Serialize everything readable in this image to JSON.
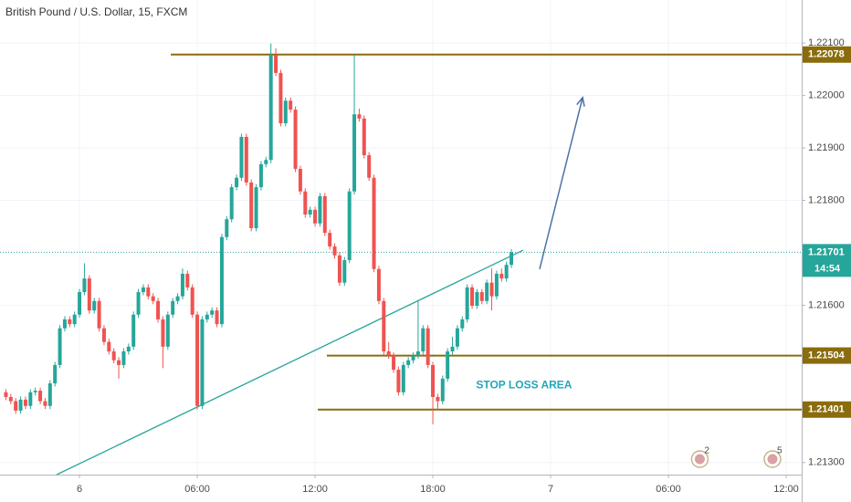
{
  "chart_data": {
    "type": "candlestick",
    "title": "British Pound / U.S. Dollar, 15, FXCM",
    "up_color": "#26a69a",
    "down_color": "#ef5350",
    "xlim": [
      -4.05,
      36.79
    ],
    "ylim": [
      1.21277,
      1.22182
    ],
    "xticks": [
      {
        "value": 0,
        "label": "6"
      },
      {
        "value": 6,
        "label": "06:00"
      },
      {
        "value": 12,
        "label": "12:00"
      },
      {
        "value": 18,
        "label": "18:00"
      },
      {
        "value": 24,
        "label": "7"
      },
      {
        "value": 30,
        "label": "06:00"
      },
      {
        "value": 36,
        "label": "12:00"
      }
    ],
    "yticks": [
      {
        "value": 1.221,
        "label": "1.22100"
      },
      {
        "value": 1.22,
        "label": "1.22000"
      },
      {
        "value": 1.219,
        "label": "1.21900"
      },
      {
        "value": 1.218,
        "label": "1.21800"
      },
      {
        "value": 1.216,
        "label": "1.21600"
      },
      {
        "value": 1.213,
        "label": "1.21300"
      }
    ],
    "grid": true,
    "x": [
      -3.75,
      -3.5,
      -3.25,
      -3,
      -2.75,
      -2.5,
      -2.25,
      -2,
      -1.75,
      -1.5,
      -1.25,
      -1,
      -0.75,
      -0.5,
      -0.25,
      0,
      0.25,
      0.5,
      0.75,
      1,
      1.25,
      1.5,
      1.75,
      2,
      2.25,
      2.5,
      2.75,
      3,
      3.25,
      3.5,
      3.75,
      4,
      4.25,
      4.5,
      4.75,
      5,
      5.25,
      5.5,
      5.75,
      6,
      6.25,
      6.5,
      6.75,
      7,
      7.25,
      7.5,
      7.75,
      8,
      8.25,
      8.5,
      8.75,
      9,
      9.25,
      9.5,
      9.75,
      10,
      10.25,
      10.5,
      10.75,
      11,
      11.25,
      11.5,
      11.75,
      12,
      12.25,
      12.5,
      12.75,
      13,
      13.25,
      13.5,
      13.75,
      14,
      14.25,
      14.5,
      14.75,
      15,
      15.25,
      15.5,
      15.75,
      16,
      16.25,
      16.5,
      16.75,
      17,
      17.25,
      17.5,
      17.75,
      18,
      18.25,
      18.5,
      18.75,
      19,
      19.25,
      19.5,
      19.75,
      20,
      20.25,
      20.5,
      20.75,
      21,
      21.25,
      21.5,
      21.75,
      22
    ],
    "candles": [
      [
        1.21434,
        1.2144,
        1.21419,
        1.21425
      ],
      [
        1.21425,
        1.21431,
        1.21411,
        1.21417
      ],
      [
        1.21417,
        1.21423,
        1.21393,
        1.21399
      ],
      [
        1.21399,
        1.21426,
        1.21393,
        1.2142
      ],
      [
        1.2142,
        1.21426,
        1.21402,
        1.21408
      ],
      [
        1.21408,
        1.2144,
        1.21402,
        1.21434
      ],
      [
        1.21434,
        1.21443,
        1.21428,
        1.21437
      ],
      [
        1.21437,
        1.21443,
        1.21411,
        1.21417
      ],
      [
        1.21417,
        1.21423,
        1.21402,
        1.21408
      ],
      [
        1.21408,
        1.21457,
        1.21402,
        1.21451
      ],
      [
        1.21451,
        1.21492,
        1.21445,
        1.21486
      ],
      [
        1.21486,
        1.21562,
        1.2148,
        1.21556
      ],
      [
        1.21556,
        1.21579,
        1.2155,
        1.21573
      ],
      [
        1.21573,
        1.21579,
        1.21558,
        1.21564
      ],
      [
        1.21564,
        1.21588,
        1.21558,
        1.21582
      ],
      [
        1.21582,
        1.21631,
        1.21576,
        1.21625
      ],
      [
        1.21625,
        1.2168,
        1.21619,
        1.21651
      ],
      [
        1.21651,
        1.21657,
        1.21584,
        1.2159
      ],
      [
        1.2159,
        1.21614,
        1.21584,
        1.21608
      ],
      [
        1.21608,
        1.21614,
        1.2155,
        1.21556
      ],
      [
        1.21556,
        1.21562,
        1.21524,
        1.2153
      ],
      [
        1.2153,
        1.21536,
        1.21506,
        1.21512
      ],
      [
        1.21512,
        1.21518,
        1.21489,
        1.21495
      ],
      [
        1.21495,
        1.21501,
        1.2146,
        1.21486
      ],
      [
        1.21486,
        1.21518,
        1.2148,
        1.21512
      ],
      [
        1.21512,
        1.21527,
        1.21506,
        1.21521
      ],
      [
        1.21521,
        1.21588,
        1.21515,
        1.21582
      ],
      [
        1.21582,
        1.21631,
        1.21576,
        1.21625
      ],
      [
        1.21625,
        1.2164,
        1.21619,
        1.21634
      ],
      [
        1.21634,
        1.2164,
        1.21611,
        1.21617
      ],
      [
        1.21617,
        1.21623,
        1.21602,
        1.21608
      ],
      [
        1.21608,
        1.21614,
        1.21567,
        1.21573
      ],
      [
        1.21573,
        1.21579,
        1.2148,
        1.21521
      ],
      [
        1.21521,
        1.21588,
        1.21515,
        1.21582
      ],
      [
        1.21582,
        1.21614,
        1.21576,
        1.21608
      ],
      [
        1.21608,
        1.21623,
        1.21602,
        1.21617
      ],
      [
        1.21617,
        1.2167,
        1.21611,
        1.2166
      ],
      [
        1.2166,
        1.21666,
        1.21628,
        1.21634
      ],
      [
        1.21634,
        1.2164,
        1.21576,
        1.21582
      ],
      [
        1.21582,
        1.21588,
        1.21401,
        1.21408
      ],
      [
        1.21408,
        1.21579,
        1.21402,
        1.21573
      ],
      [
        1.21573,
        1.21588,
        1.21567,
        1.21582
      ],
      [
        1.21582,
        1.21596,
        1.21576,
        1.2159
      ],
      [
        1.2159,
        1.21596,
        1.21558,
        1.21564
      ],
      [
        1.21564,
        1.21736,
        1.21558,
        1.2173
      ],
      [
        1.2173,
        1.2177,
        1.21724,
        1.21764
      ],
      [
        1.21764,
        1.21831,
        1.21758,
        1.21825
      ],
      [
        1.21825,
        1.21849,
        1.21819,
        1.21843
      ],
      [
        1.21843,
        1.21927,
        1.21837,
        1.21921
      ],
      [
        1.21921,
        1.21927,
        1.21828,
        1.21834
      ],
      [
        1.21834,
        1.2184,
        1.21741,
        1.21747
      ],
      [
        1.21747,
        1.21831,
        1.21741,
        1.21825
      ],
      [
        1.21825,
        1.21875,
        1.21819,
        1.21869
      ],
      [
        1.21869,
        1.21883,
        1.21863,
        1.21877
      ],
      [
        1.21877,
        1.22099,
        1.21871,
        1.22077
      ],
      [
        1.22077,
        1.2209,
        1.22037,
        1.22043
      ],
      [
        1.22043,
        1.22049,
        1.21941,
        1.21947
      ],
      [
        1.21947,
        1.21996,
        1.21941,
        1.2199
      ],
      [
        1.2199,
        1.21996,
        1.21967,
        1.21973
      ],
      [
        1.21973,
        1.21979,
        1.21854,
        1.2186
      ],
      [
        1.2186,
        1.21866,
        1.21811,
        1.21817
      ],
      [
        1.21817,
        1.21823,
        1.21767,
        1.21773
      ],
      [
        1.21773,
        1.21788,
        1.21767,
        1.21782
      ],
      [
        1.21782,
        1.21788,
        1.2175,
        1.21756
      ],
      [
        1.21756,
        1.21814,
        1.2175,
        1.21808
      ],
      [
        1.21808,
        1.21814,
        1.21732,
        1.21738
      ],
      [
        1.21738,
        1.21744,
        1.21706,
        1.21712
      ],
      [
        1.21712,
        1.21718,
        1.21689,
        1.21695
      ],
      [
        1.21695,
        1.21701,
        1.21637,
        1.21643
      ],
      [
        1.21643,
        1.21692,
        1.21637,
        1.21686
      ],
      [
        1.21686,
        1.21823,
        1.2168,
        1.21817
      ],
      [
        1.21817,
        1.22078,
        1.21811,
        1.21964
      ],
      [
        1.21964,
        1.21975,
        1.2195,
        1.21956
      ],
      [
        1.21956,
        1.21962,
        1.2188,
        1.21886
      ],
      [
        1.21886,
        1.21892,
        1.21837,
        1.21843
      ],
      [
        1.21843,
        1.21849,
        1.21663,
        1.21669
      ],
      [
        1.21669,
        1.21675,
        1.21602,
        1.21608
      ],
      [
        1.21608,
        1.21614,
        1.21506,
        1.21512
      ],
      [
        1.21512,
        1.2153,
        1.21498,
        1.21504
      ],
      [
        1.21504,
        1.2151,
        1.21471,
        1.21477
      ],
      [
        1.21477,
        1.21483,
        1.21428,
        1.21434
      ],
      [
        1.21434,
        1.21492,
        1.21428,
        1.21486
      ],
      [
        1.21486,
        1.21501,
        1.2148,
        1.21495
      ],
      [
        1.21495,
        1.2151,
        1.21489,
        1.21504
      ],
      [
        1.21504,
        1.2161,
        1.21498,
        1.21512
      ],
      [
        1.21512,
        1.21562,
        1.21506,
        1.21556
      ],
      [
        1.21556,
        1.21562,
        1.2148,
        1.21486
      ],
      [
        1.21486,
        1.21492,
        1.21373,
        1.21425
      ],
      [
        1.21425,
        1.21431,
        1.214,
        1.21417
      ],
      [
        1.21417,
        1.21466,
        1.21411,
        1.2146
      ],
      [
        1.2146,
        1.21518,
        1.21454,
        1.21512
      ],
      [
        1.21512,
        1.2154,
        1.21506,
        1.21521
      ],
      [
        1.21521,
        1.21562,
        1.21515,
        1.21556
      ],
      [
        1.21556,
        1.21579,
        1.2155,
        1.21573
      ],
      [
        1.21573,
        1.2164,
        1.21567,
        1.21634
      ],
      [
        1.21634,
        1.2164,
        1.21593,
        1.21599
      ],
      [
        1.21599,
        1.21631,
        1.21593,
        1.21625
      ],
      [
        1.21625,
        1.21631,
        1.21602,
        1.21608
      ],
      [
        1.21608,
        1.21649,
        1.21602,
        1.21643
      ],
      [
        1.21643,
        1.2167,
        1.2159,
        1.21617
      ],
      [
        1.21617,
        1.21666,
        1.21611,
        1.2166
      ],
      [
        1.2166,
        1.2167,
        1.21645,
        1.21651
      ],
      [
        1.21651,
        1.21683,
        1.21645,
        1.21677
      ],
      [
        1.21677,
        1.21707,
        1.21671,
        1.21701
      ]
    ],
    "levels": [
      {
        "value": 1.22078,
        "x_start": 4.65,
        "color": "#8a6c0c"
      },
      {
        "value": 1.21504,
        "x_start": 12.6,
        "color": "#8a6c0c"
      },
      {
        "value": 1.21401,
        "x_start": 12.14,
        "color": "#8a6c0c"
      }
    ],
    "last_price": 1.21701,
    "last_price_color": "#26a69a",
    "countdown": "14:54",
    "trendline": {
      "x": [
        -1.16,
        22.6
      ],
      "y": [
        1.21277,
        1.21705
      ],
      "color": "#26a69a"
    },
    "arrow": {
      "x": [
        23.44,
        25.63
      ],
      "y": [
        1.21669,
        1.21996
      ],
      "color": "#4a72a8"
    },
    "annotation": {
      "text": "STOP LOSS AREA",
      "x": 20.2,
      "y": 1.21447,
      "color": "#22a6b8"
    },
    "events": [
      {
        "label": "2",
        "x": 31.6
      },
      {
        "label": "5",
        "x": 35.3
      }
    ]
  }
}
